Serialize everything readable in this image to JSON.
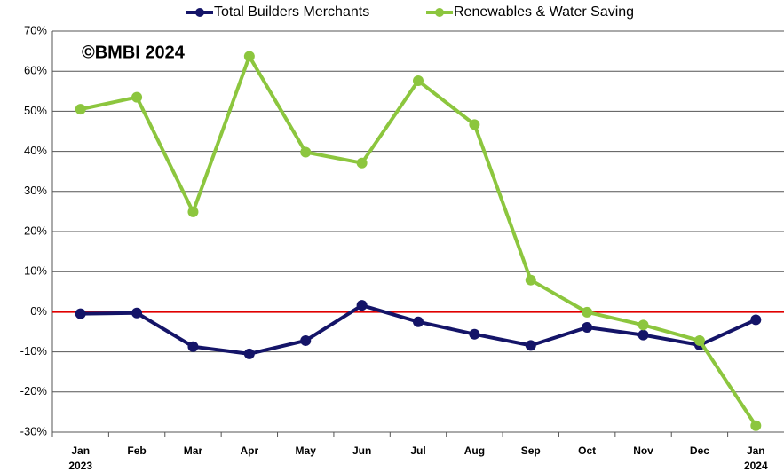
{
  "chart_data": {
    "type": "line",
    "annotation": "©BMBI 2024",
    "categories": [
      "Jan\n2023",
      "Feb",
      "Mar",
      "Apr",
      "May",
      "Jun",
      "Jul",
      "Aug",
      "Sep",
      "Oct",
      "Nov",
      "Dec",
      "Jan\n2024"
    ],
    "series": [
      {
        "name": "Total Builders Merchants",
        "color": "#141468",
        "values": [
          -0.5,
          -0.3,
          -8.7,
          -10.5,
          -7.2,
          1.6,
          -2.5,
          -5.6,
          -8.4,
          -3.9,
          -5.8,
          -8.3,
          -2.0
        ]
      },
      {
        "name": "Renewables & Water Saving",
        "color": "#8cc63e",
        "values": [
          50.5,
          53.5,
          24.9,
          63.7,
          39.8,
          37.1,
          57.6,
          46.7,
          7.9,
          -0.1,
          -3.3,
          -7.2,
          -28.4
        ]
      }
    ],
    "ylim": [
      -30,
      70
    ],
    "yticks": [
      {
        "value": -30,
        "label": "-30%"
      },
      {
        "value": -20,
        "label": "-20%"
      },
      {
        "value": -10,
        "label": "-10%"
      },
      {
        "value": 0,
        "label": "0%"
      },
      {
        "value": 10,
        "label": "10%"
      },
      {
        "value": 20,
        "label": "20%"
      },
      {
        "value": 30,
        "label": "30%"
      },
      {
        "value": 40,
        "label": "40%"
      },
      {
        "value": 50,
        "label": "50%"
      },
      {
        "value": 60,
        "label": "60%"
      },
      {
        "value": 70,
        "label": "70%"
      }
    ],
    "grid": true,
    "zero_line_color": "#e00000",
    "legend": "top"
  }
}
